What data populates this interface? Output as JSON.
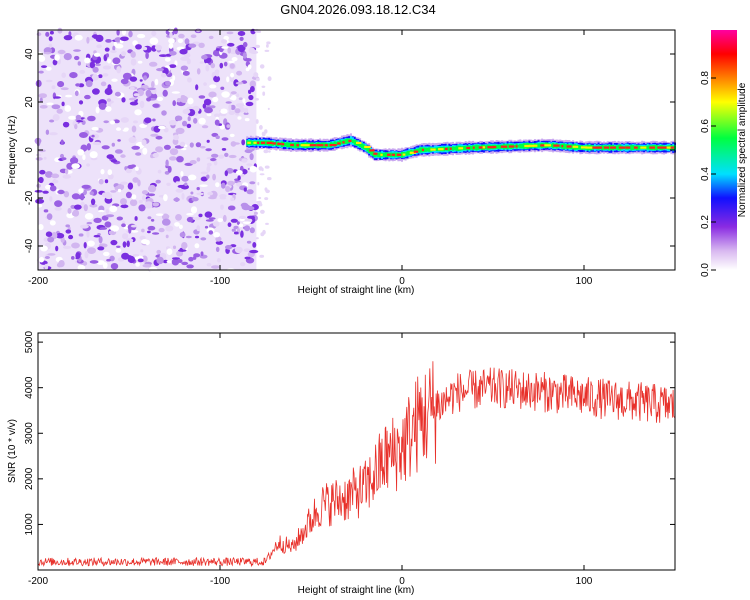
{
  "title": "GN04.2026.093.18.12.C34",
  "chart_data": [
    {
      "type": "heatmap",
      "name": "spectrogram",
      "xlabel": "Height of straight line (km)",
      "ylabel": "Frequency (Hz)",
      "xlim": [
        -200,
        150
      ],
      "ylim": [
        -50,
        50
      ],
      "xticks": [
        "-200",
        "-100",
        "0",
        "100"
      ],
      "xtick_values": [
        -200,
        -100,
        0,
        100
      ],
      "yticks": [
        "-40",
        "-20",
        "0",
        "20",
        "40"
      ],
      "ytick_values": [
        -40,
        -20,
        0,
        20,
        40
      ],
      "noise_region": [
        -200,
        -80
      ],
      "signal_track": [
        {
          "x": -85,
          "y": 3
        },
        {
          "x": -75,
          "y": 3
        },
        {
          "x": -60,
          "y": 2
        },
        {
          "x": -40,
          "y": 2
        },
        {
          "x": -28,
          "y": 4
        },
        {
          "x": -20,
          "y": 1
        },
        {
          "x": -15,
          "y": -2
        },
        {
          "x": 0,
          "y": -2
        },
        {
          "x": 10,
          "y": 0
        },
        {
          "x": 40,
          "y": 1
        },
        {
          "x": 80,
          "y": 2
        },
        {
          "x": 100,
          "y": 1
        },
        {
          "x": 150,
          "y": 1
        }
      ],
      "colorbar": {
        "label": "Normalized spectral amplitude",
        "range": [
          0,
          1
        ],
        "ticks": [
          "0.0",
          "0.2",
          "0.4",
          "0.6",
          "0.8"
        ],
        "tick_values": [
          0,
          0.2,
          0.4,
          0.6,
          0.8
        ],
        "colors": [
          "#ffffff",
          "#d8b8f0",
          "#8a2be2",
          "#1010ff",
          "#00e0ff",
          "#00ff40",
          "#ffff00",
          "#ff8000",
          "#ff0000",
          "#ff00a0"
        ]
      }
    },
    {
      "type": "line",
      "name": "snr",
      "xlabel": "Height of straight line (km)",
      "ylabel": "SNR (10 * v/v)",
      "xlim": [
        -200,
        150
      ],
      "ylim": [
        0,
        5200
      ],
      "xticks": [
        "-200",
        "-100",
        "0",
        "100"
      ],
      "xtick_values": [
        -200,
        -100,
        0,
        100
      ],
      "yticks": [
        "1000",
        "2000",
        "3000",
        "4000",
        "5000"
      ],
      "ytick_values": [
        1000,
        2000,
        3000,
        4000,
        5000
      ],
      "color": "#e8302a",
      "trend": [
        {
          "x": -200,
          "y": 180
        },
        {
          "x": -75,
          "y": 180
        },
        {
          "x": -68,
          "y": 600
        },
        {
          "x": -60,
          "y": 500
        },
        {
          "x": -45,
          "y": 1400
        },
        {
          "x": -30,
          "y": 1600
        },
        {
          "x": -20,
          "y": 1800
        },
        {
          "x": -10,
          "y": 2400
        },
        {
          "x": 0,
          "y": 2700
        },
        {
          "x": 10,
          "y": 3300
        },
        {
          "x": 20,
          "y": 3600
        },
        {
          "x": 30,
          "y": 3900
        },
        {
          "x": 50,
          "y": 4000
        },
        {
          "x": 80,
          "y": 3900
        },
        {
          "x": 100,
          "y": 3800
        },
        {
          "x": 150,
          "y": 3600
        }
      ]
    }
  ]
}
